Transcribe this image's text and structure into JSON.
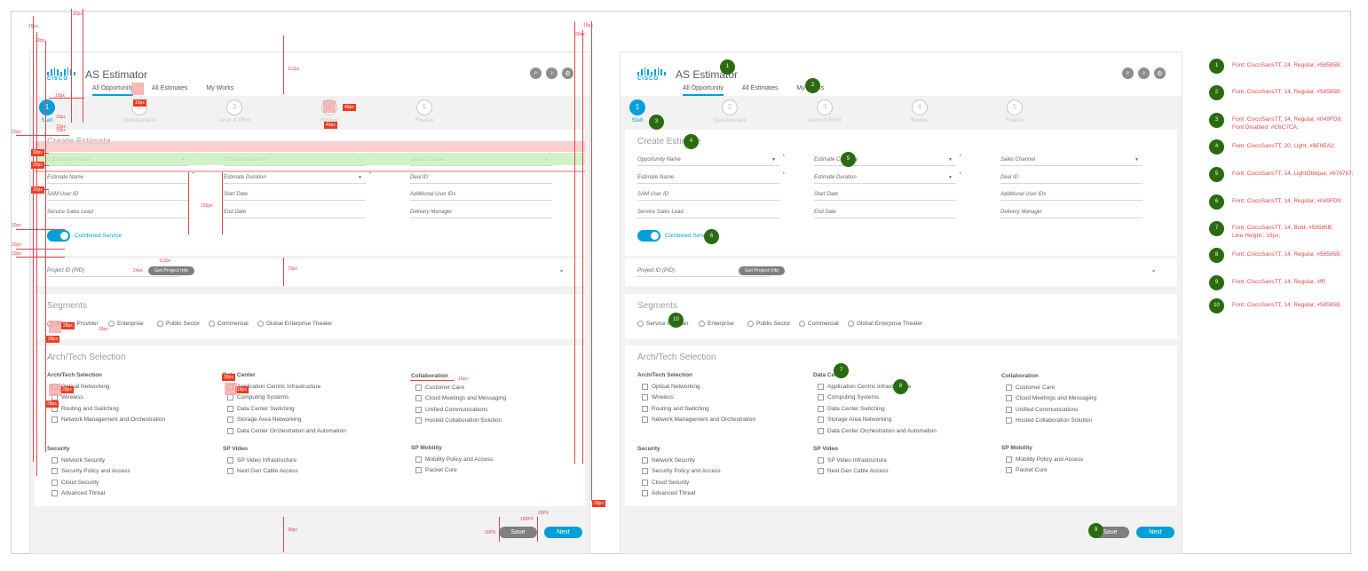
{
  "app": {
    "logo_word": "CISCO",
    "title": "AS Estimator",
    "nav": [
      "All Opportunity",
      "All Estimates",
      "My Works"
    ],
    "header_icons": [
      "search-icon",
      "bell-icon",
      "gear-icon"
    ]
  },
  "steps": [
    {
      "num": "1",
      "label": "Start"
    },
    {
      "num": "2",
      "label": "Questionnaire"
    },
    {
      "num": "3",
      "label": "Level of Effort"
    },
    {
      "num": "4",
      "label": "Review"
    },
    {
      "num": "5",
      "label": "Finalize"
    }
  ],
  "create": {
    "title": "Create Estimate",
    "required_mark": "*",
    "dropdown_arrow": "▼",
    "fields": {
      "opportunity_name": "Opportunity Name",
      "estimate_currency": "Estimate Currency",
      "sales_channel": "Sales Channel",
      "estimate_name": "Estimate Name",
      "estimate_duration": "Estimate Duration",
      "deal_id": "Deal ID",
      "sam_user_id": "SAM User ID",
      "start_date": "Start Date",
      "additional_user_ids": "Additional User IDs",
      "service_sales_lead": "Service Sales Lead",
      "end_date": "End Date",
      "delivery_manager": "Delivery Manager"
    },
    "combined_service": "Combined Service"
  },
  "project": {
    "pid_placeholder": "Project ID (PID)",
    "get_info_button": "Get Project Info",
    "chevron": "⌄"
  },
  "segments": {
    "title": "Segments",
    "options": [
      "Service Provider",
      "Enterprise",
      "Public Sector",
      "Commercial",
      "Global Enterprise Theater"
    ]
  },
  "arch": {
    "title": "Arch/Tech Selection",
    "groups": [
      {
        "name": "Arch/Tech Selection",
        "items": [
          "Optical Networking",
          "Wireless",
          "Routing and Switching",
          "Network Management and Orchestration"
        ]
      },
      {
        "name": "Data Center",
        "items": [
          "Application Centric Infrastructure",
          "Computing Systems",
          "Data Center Switching",
          "Storage Area Networking",
          "Data Center Orchestration and Automation"
        ]
      },
      {
        "name": "Collaboration",
        "items": [
          "Customer Care",
          "Cloud Meetings and Messaging",
          "Unified Communications",
          "Hosted Collaboration Solution"
        ]
      },
      {
        "name": "Security",
        "items": [
          "Network Security",
          "Security Policy and Access",
          "Cloud Security",
          "Advanced Threat"
        ]
      },
      {
        "name": "SP Video",
        "items": [
          "SP Video Infrastructure",
          "Next Gen Cable Access"
        ]
      },
      {
        "name": "SP Mobility",
        "items": [
          "Mobility Policy and Access",
          "Packet Core"
        ]
      }
    ]
  },
  "footer": {
    "save": "Save",
    "next": "Next"
  },
  "annotations": {
    "spacing_labels": [
      "15px",
      "30px",
      "30px",
      "20px",
      "20px",
      "10px",
      "30px",
      "20px",
      "20px",
      "20px",
      "10px",
      "20px",
      "112px",
      "10px",
      "10px",
      "40px",
      "40px",
      "10px",
      "105px",
      "24px",
      "112px",
      "73px",
      "28px",
      "28px",
      "30px",
      "18px",
      "28px",
      "28px",
      "16px",
      "10px",
      "90px",
      "30PX",
      "100PX",
      "20PX",
      "15px",
      "30px",
      "20px"
    ],
    "markers": [
      "1",
      "2",
      "3",
      "4",
      "5",
      "6",
      "7",
      "8",
      "9",
      "10"
    ]
  },
  "legend": [
    {
      "num": "1",
      "text": "Font: CiscoSansTT, 24, Regular, #58585B;"
    },
    {
      "num": "2",
      "text": "Font: CiscoSansTT, 14, Regular, #58585B;"
    },
    {
      "num": "3",
      "text": "Font: CiscoSansTT, 14, Regular, #049FD9;",
      "text2": "Font Disabled: #C6C7CA;"
    },
    {
      "num": "4",
      "text": "Font: CiscoSansTT, 20, Light, #9E9EA2;"
    },
    {
      "num": "5",
      "text": "Font: CiscoSansTT, 14, LightOblique, #676767;"
    },
    {
      "num": "6",
      "text": "Font: CiscoSansTT, 14, Regular, #049FD9;"
    },
    {
      "num": "7",
      "text": "Font: CiscoSansTT, 14, Bold, #58585B;",
      "text2": "Line Height : 19px;"
    },
    {
      "num": "8",
      "text": "Font: CiscoSansTT, 14, Regular, #58585B;"
    },
    {
      "num": "9",
      "text": "Font: CiscoSansTT, 14, Regular, #fff;"
    },
    {
      "num": "10",
      "text": "Font: CiscoSansTT, 14, Regular, #58585B;"
    }
  ],
  "colors": {
    "accent": "#049FD9",
    "text": "#58585B",
    "disabled": "#C6C7CA",
    "title_light": "#9E9EA2",
    "field": "#676767",
    "annotation": "#e0474c",
    "marker": "#2a6b10"
  }
}
